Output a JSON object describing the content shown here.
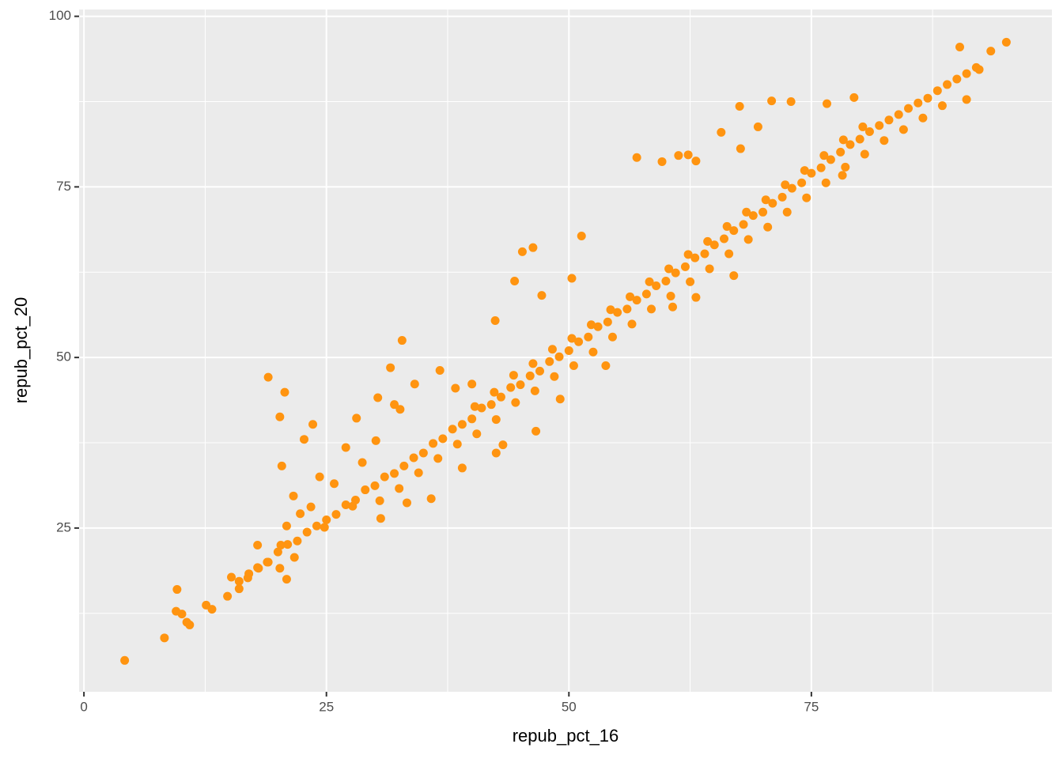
{
  "chart_data": {
    "type": "scatter",
    "x_label": "repub_pct_16",
    "y_label": "repub_pct_20",
    "color": "#ff9410",
    "xlim": [
      -0.5,
      99.8
    ],
    "ylim": [
      1.0,
      101.0
    ],
    "xticks": [
      0,
      25,
      50,
      75
    ],
    "yticks": [
      25,
      50,
      75,
      100
    ],
    "x_minor_grid": [
      12.5,
      37.5,
      62.5,
      87.5
    ],
    "y_minor_grid": [
      12.5,
      37.5,
      62.5,
      87.5
    ],
    "grid": true,
    "x": [
      4.2,
      8.3,
      9.6,
      9.5,
      10.1,
      10.6,
      10.9,
      12.6,
      13.2,
      14.8,
      15.2,
      16.0,
      16.9,
      17.9,
      17.9,
      18.9,
      19.0,
      20.2,
      20.4,
      20.7,
      20.3,
      20.2,
      20.9,
      20.9,
      21.6,
      22.7,
      23.6,
      21.7,
      22.3,
      23.4,
      24.3,
      24.8,
      27.0,
      28.1,
      25.8,
      27.7,
      28.7,
      30.1,
      30.3,
      31.6,
      32.8,
      32.6,
      32.0,
      34.1,
      35.8,
      36.7,
      38.3,
      40.0,
      42.4,
      45.2,
      46.3,
      44.4,
      47.2,
      51.3,
      50.3,
      57.0,
      59.6,
      61.3,
      62.3,
      63.1,
      65.7,
      67.7,
      67.6,
      69.5,
      70.9,
      72.9,
      76.6,
      79.4,
      90.3,
      95.1,
      93.5,
      92.3,
      91.0,
      67.0,
      63.1,
      60.7,
      53.8,
      49.1,
      46.6,
      43.2,
      42.5,
      39.0,
      33.3,
      30.6,
      78.2,
      16,
      17,
      18,
      19,
      20,
      21,
      22,
      23,
      24,
      25,
      26,
      27,
      28,
      29,
      30,
      31,
      32,
      33,
      34,
      35,
      36,
      37,
      38,
      39,
      40,
      41,
      42,
      43,
      44,
      45,
      46,
      47,
      48,
      49,
      50,
      51,
      52,
      53,
      54,
      55,
      56,
      57,
      58,
      59,
      60,
      61,
      62,
      63,
      64,
      65,
      66,
      67,
      68,
      69,
      70,
      71,
      72,
      73,
      74,
      75,
      76,
      77,
      78,
      79,
      80,
      81,
      82,
      83,
      84,
      85,
      86,
      87,
      88,
      89,
      90,
      91,
      92,
      30.5,
      32.5,
      34.5,
      36.5,
      38.5,
      40.5,
      42.5,
      44.5,
      46.5,
      48.5,
      50.5,
      52.5,
      54.5,
      56.5,
      58.5,
      60.5,
      62.5,
      64.5,
      66.5,
      68.5,
      70.5,
      72.5,
      74.5,
      76.5,
      78.5,
      80.5,
      82.5,
      84.5,
      86.5,
      88.5,
      40.3,
      42.3,
      44.3,
      46.3,
      48.3,
      50.3,
      52.3,
      54.3,
      56.3,
      58.3,
      60.3,
      62.3,
      64.3,
      66.3,
      68.3,
      70.3,
      72.3,
      74.3,
      76.3,
      78.3,
      80.3
    ],
    "values": [
      5.6,
      8.9,
      16.0,
      12.8,
      12.4,
      11.2,
      10.8,
      13.7,
      13.1,
      15.0,
      17.8,
      16.1,
      17.7,
      19.2,
      22.5,
      20.0,
      47.1,
      41.3,
      34.1,
      44.9,
      22.5,
      19.1,
      17.5,
      25.3,
      29.7,
      38.0,
      40.2,
      20.7,
      27.1,
      28.1,
      32.5,
      25.1,
      36.8,
      41.1,
      31.5,
      28.2,
      34.6,
      37.8,
      44.1,
      48.5,
      52.5,
      42.4,
      43.1,
      46.1,
      29.3,
      48.1,
      45.5,
      46.1,
      55.4,
      65.5,
      66.1,
      61.2,
      59.1,
      67.8,
      61.6,
      79.3,
      78.7,
      79.6,
      79.7,
      78.8,
      83.0,
      80.6,
      86.8,
      83.8,
      87.6,
      87.5,
      87.2,
      88.1,
      95.5,
      96.2,
      94.9,
      92.2,
      87.8,
      62.0,
      58.8,
      57.4,
      48.8,
      43.9,
      39.2,
      37.2,
      36.0,
      33.8,
      28.7,
      26.4,
      76.7,
      17.2,
      18.3,
      19.1,
      20.0,
      21.5,
      22.6,
      23.1,
      24.4,
      25.3,
      26.2,
      27.0,
      28.4,
      29.1,
      30.6,
      31.2,
      32.5,
      33.0,
      34.1,
      35.3,
      36.0,
      37.4,
      38.1,
      39.5,
      40.2,
      41.0,
      42.6,
      43.1,
      44.2,
      45.6,
      46.0,
      47.3,
      48.0,
      49.4,
      50.1,
      51.0,
      52.3,
      53.0,
      54.5,
      55.2,
      56.6,
      57.1,
      58.4,
      59.3,
      60.5,
      61.2,
      62.4,
      63.3,
      64.6,
      65.2,
      66.5,
      67.4,
      68.6,
      69.5,
      70.8,
      71.3,
      72.6,
      73.5,
      74.8,
      75.6,
      77.0,
      77.8,
      79.0,
      80.1,
      81.2,
      82.0,
      83.1,
      84.0,
      84.8,
      85.6,
      86.5,
      87.3,
      88.0,
      89.1,
      90.0,
      90.8,
      91.6,
      92.5,
      29.0,
      30.8,
      33.1,
      35.2,
      37.3,
      38.8,
      40.9,
      43.4,
      45.1,
      47.2,
      48.8,
      50.8,
      53.0,
      54.9,
      57.1,
      59.0,
      61.1,
      63.0,
      65.2,
      67.3,
      69.1,
      71.3,
      73.4,
      75.6,
      77.9,
      79.8,
      81.8,
      83.4,
      85.1,
      86.9,
      42.8,
      44.9,
      47.4,
      49.1,
      51.2,
      52.8,
      54.8,
      57.0,
      58.9,
      61.1,
      63.0,
      65.1,
      67.0,
      69.2,
      71.3,
      73.1,
      75.3,
      77.4,
      79.6,
      81.9,
      83.8
    ]
  }
}
